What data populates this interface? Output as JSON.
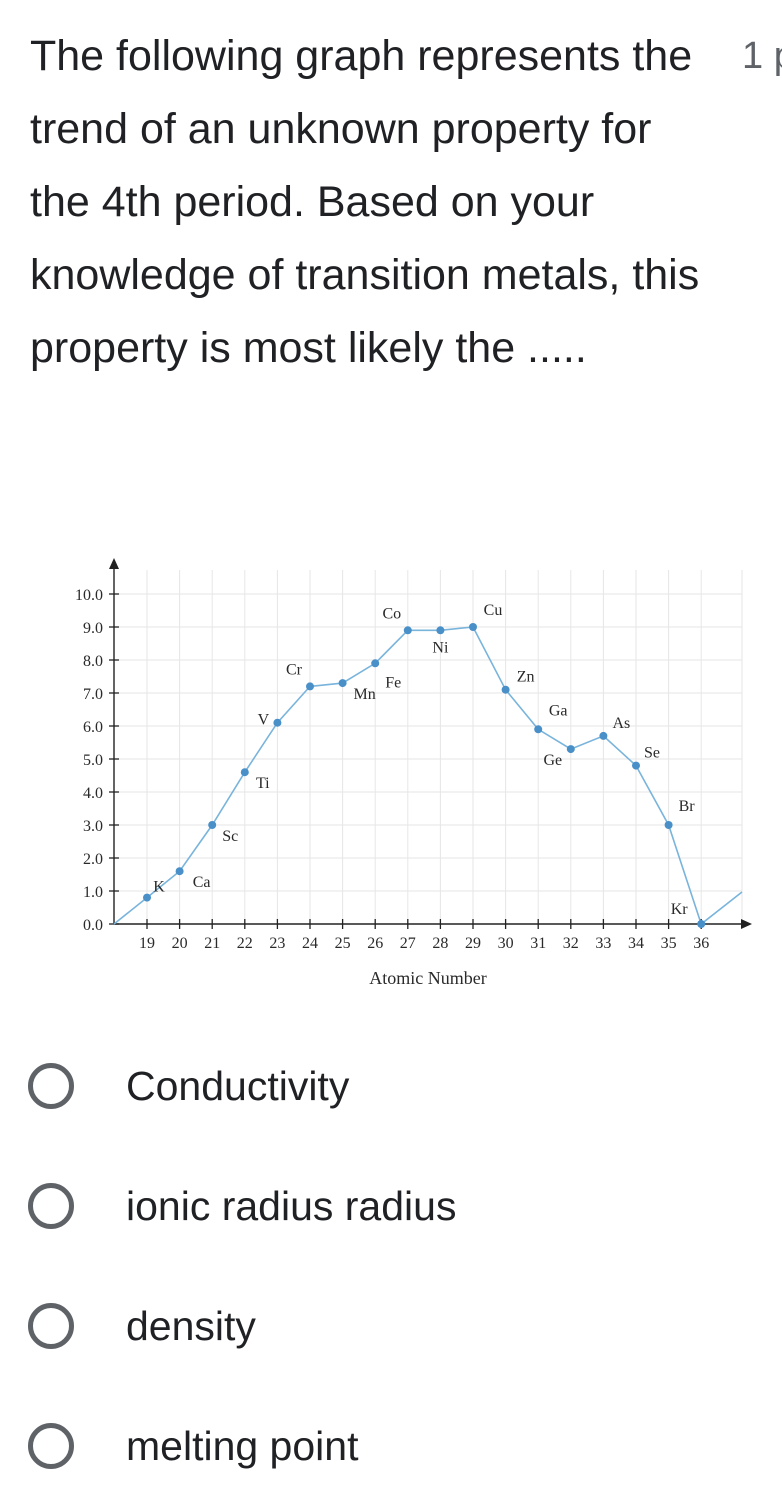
{
  "question": {
    "text": "The following graph represents the trend of an unknown property for the 4th period. Based on your knowledge of transition metals, this property is most likely the .....",
    "points_label": "1 p"
  },
  "chart_data": {
    "type": "line",
    "title": "",
    "xlabel": "Atomic Number",
    "ylabel": "",
    "x_ticks": [
      19,
      20,
      21,
      22,
      23,
      24,
      25,
      26,
      27,
      28,
      29,
      30,
      31,
      32,
      33,
      34,
      35,
      36
    ],
    "y_ticks": [
      "0.0",
      "1.0",
      "2.0",
      "3.0",
      "4.0",
      "5.0",
      "6.0",
      "7.0",
      "8.0",
      "9.0",
      "10.0"
    ],
    "ylim": [
      0,
      10
    ],
    "grid": true,
    "line_color": "#79b4dc",
    "point_color": "#4a90c8",
    "series": [
      {
        "x": [
          19,
          20,
          21,
          22,
          23,
          24,
          25,
          26,
          27,
          28,
          29,
          30,
          31,
          32,
          33,
          34,
          35,
          36
        ],
        "y": [
          0.8,
          1.6,
          3.0,
          4.6,
          6.1,
          7.2,
          7.3,
          7.9,
          8.9,
          8.9,
          9.0,
          7.1,
          5.9,
          5.3,
          5.7,
          4.8,
          3.0,
          0.0
        ],
        "labels": [
          "K",
          "Ca",
          "Sc",
          "Ti",
          "V",
          "Cr",
          "Mn",
          "Fe",
          "Co",
          "Ni",
          "Cu",
          "Zn",
          "Ga",
          "Ge",
          "As",
          "Se",
          "Br",
          "Kr"
        ]
      }
    ]
  },
  "options": [
    {
      "label": "Conductivity"
    },
    {
      "label": "ionic radius radius"
    },
    {
      "label": "density"
    },
    {
      "label": "melting point"
    }
  ]
}
